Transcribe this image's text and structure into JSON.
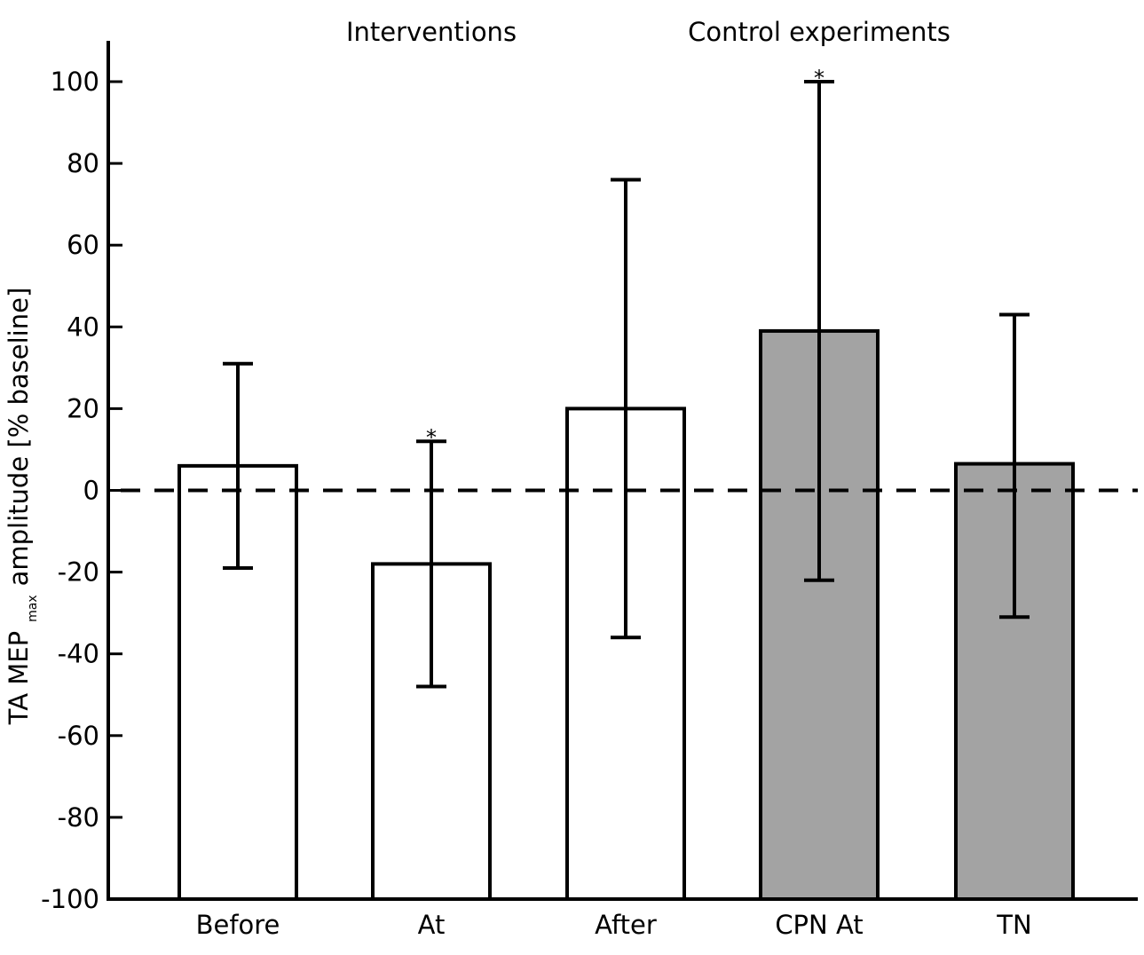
{
  "chart_data": {
    "type": "bar",
    "categories": [
      "Before",
      "At",
      "After",
      "CPN At",
      "TN"
    ],
    "values": [
      6,
      -18,
      20,
      39,
      6.5
    ],
    "error_high": [
      31,
      12,
      76,
      100,
      43
    ],
    "error_low": [
      -19,
      -48,
      -36,
      -22,
      -31
    ],
    "fill_colors": [
      "#ffffff",
      "#ffffff",
      "#ffffff",
      "#a3a3a3",
      "#a3a3a3"
    ],
    "significance": [
      "",
      "*",
      "",
      "*",
      ""
    ],
    "group_labels": [
      "Interventions",
      "Control experiments"
    ],
    "ylabel_main": "TA MEP",
    "ylabel_sub": "max",
    "ylabel_rest": "amplitude [% baseline]",
    "xlabel": "",
    "ylim": [
      -100,
      110
    ],
    "yticks": [
      100,
      80,
      60,
      40,
      20,
      0,
      -20,
      -40,
      -60,
      -80,
      -100
    ],
    "ytick_labels": [
      "100",
      "80",
      "60",
      "40",
      "20",
      "0",
      "-20",
      "-40",
      "-60",
      "-80",
      "-100"
    ],
    "reference_line": 0,
    "grid": false,
    "legend": "none"
  }
}
